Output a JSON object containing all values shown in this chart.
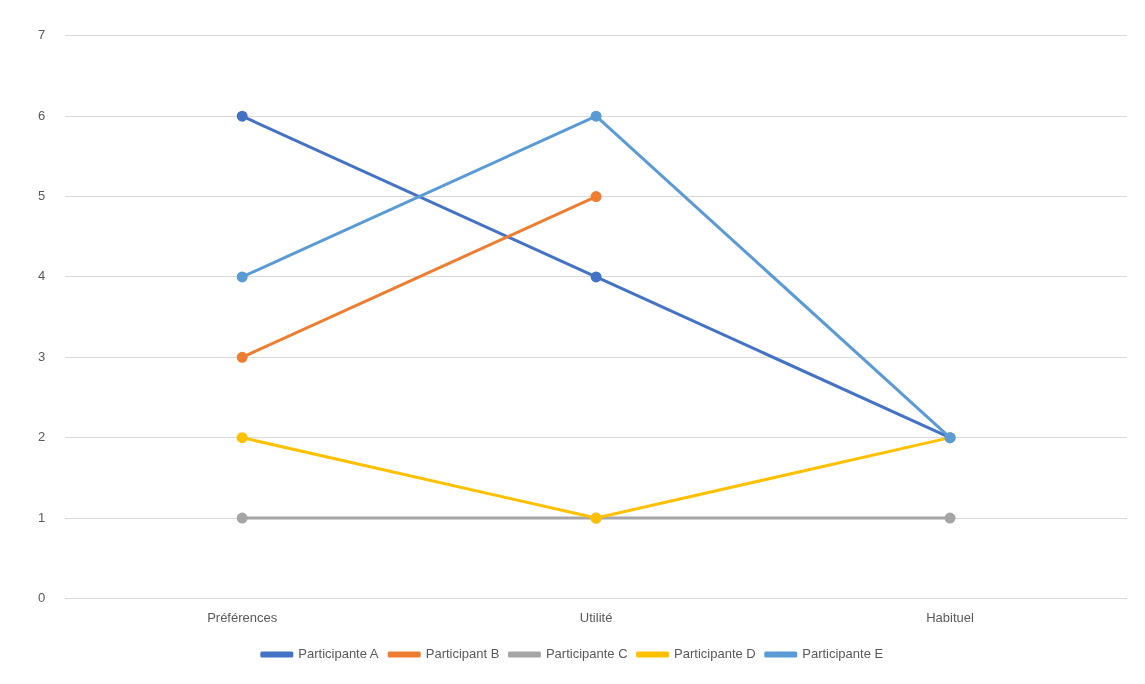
{
  "chart_data": {
    "type": "line",
    "categories": [
      "Préférences",
      "Utilité",
      "Habituel"
    ],
    "series": [
      {
        "name": "Participante A",
        "color": "#4472c4",
        "values": [
          6,
          4,
          2
        ]
      },
      {
        "name": "Participant B",
        "color": "#ed7d31",
        "values": [
          3,
          5,
          null
        ]
      },
      {
        "name": "Participante C",
        "color": "#a5a5a5",
        "values": [
          1,
          1,
          1
        ]
      },
      {
        "name": "Participante D",
        "color": "#ffc000",
        "values": [
          2,
          1,
          2
        ]
      },
      {
        "name": "Participante E",
        "color": "#5b9bd5",
        "values": [
          4,
          6,
          2
        ]
      }
    ],
    "ylim": [
      0,
      7
    ],
    "yticks": [
      0,
      1,
      2,
      3,
      4,
      5,
      6,
      7
    ],
    "grid": "y",
    "legend": "bottom",
    "marker": "circle",
    "line_style": "solid"
  }
}
